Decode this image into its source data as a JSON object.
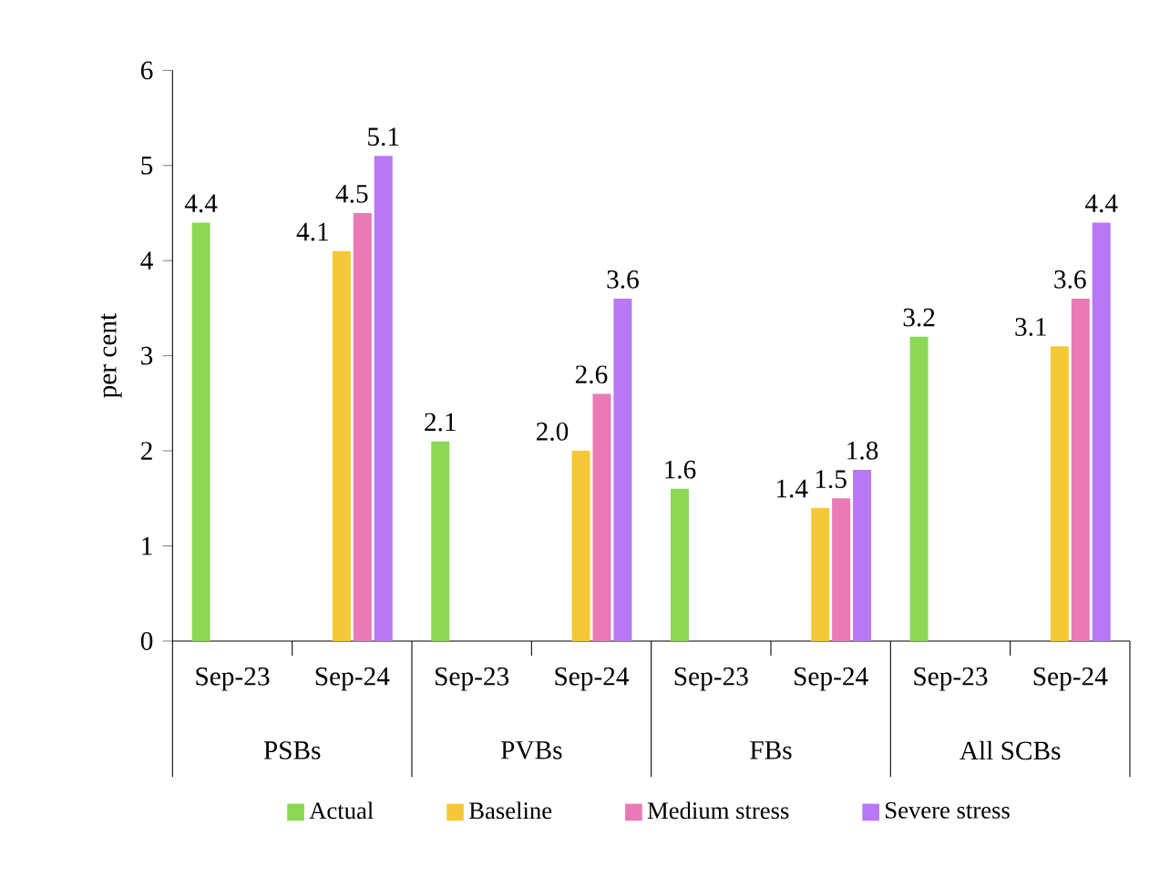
{
  "chart_data": {
    "type": "bar",
    "ylabel": "per cent",
    "categories": [
      "Sep-23",
      "Sep-24",
      "Sep-23",
      "Sep-24",
      "Sep-23",
      "Sep-24",
      "Sep-23",
      "Sep-24"
    ],
    "annotations": [
      "PSBs",
      "PVBs",
      "FBs",
      "All SCBs"
    ],
    "series": [
      {
        "name": "Actual",
        "color": "#8cd855",
        "values": [
          4.4,
          null,
          2.1,
          null,
          1.6,
          null,
          3.2,
          null
        ],
        "value_labels": [
          "4.4",
          null,
          "2.1",
          null,
          "1.6",
          null,
          "3.2",
          null
        ]
      },
      {
        "name": "Baseline",
        "color": "#f5c83a",
        "values": [
          null,
          4.1,
          null,
          2.0,
          null,
          1.4,
          null,
          3.1
        ],
        "value_labels": [
          null,
          "4.1",
          null,
          "2.0",
          null,
          "1.4",
          null,
          "3.1"
        ]
      },
      {
        "name": "Medium stress",
        "color": "#ea7ab5",
        "values": [
          null,
          4.5,
          null,
          2.6,
          null,
          1.5,
          null,
          3.6
        ],
        "value_labels": [
          null,
          "4.5",
          null,
          "2.6",
          null,
          "1.5",
          null,
          "3.6"
        ]
      },
      {
        "name": "Severe stress",
        "color": "#b878f5",
        "values": [
          null,
          5.1,
          null,
          3.6,
          null,
          1.8,
          null,
          4.4
        ],
        "value_labels": [
          null,
          "5.1",
          null,
          "3.6",
          null,
          "1.8",
          null,
          "4.4"
        ]
      }
    ],
    "ylim": [
      0,
      6
    ],
    "yticks": [
      0,
      1,
      2,
      3,
      4,
      5,
      6
    ],
    "legend": "bottom"
  }
}
